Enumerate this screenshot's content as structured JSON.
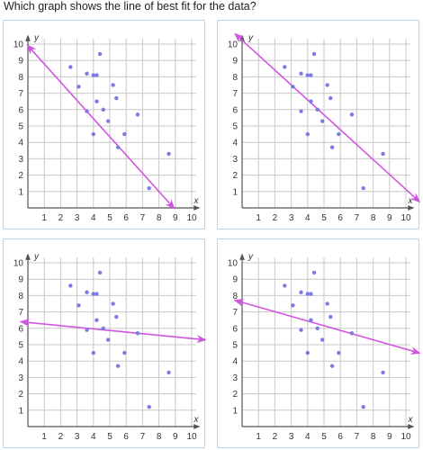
{
  "question": "Which graph shows the line of best fit for the data?",
  "colors": {
    "point": "#7b7be6",
    "line": "#d155e0",
    "grid": "#c8c8c8",
    "axis": "#555555",
    "border": "#a9d7ee"
  },
  "chart_data": [
    {
      "type": "scatter",
      "title": "",
      "xlabel": "x",
      "ylabel": "y",
      "xlim": [
        0,
        10
      ],
      "ylim": [
        0,
        10
      ],
      "grid": true,
      "x_ticks": [
        1,
        2,
        3,
        4,
        5,
        6,
        7,
        8,
        9,
        10
      ],
      "y_ticks": [
        1,
        2,
        3,
        4,
        5,
        6,
        7,
        8,
        9,
        10
      ],
      "points": [
        [
          2.6,
          8.6
        ],
        [
          3.1,
          7.4
        ],
        [
          3.6,
          8.2
        ],
        [
          3.6,
          5.9
        ],
        [
          4.0,
          8.1
        ],
        [
          4.0,
          4.5
        ],
        [
          4.2,
          8.1
        ],
        [
          4.2,
          6.5
        ],
        [
          4.4,
          9.4
        ],
        [
          4.6,
          6.0
        ],
        [
          4.9,
          5.3
        ],
        [
          5.2,
          7.5
        ],
        [
          5.4,
          6.7
        ],
        [
          5.5,
          3.7
        ],
        [
          5.9,
          4.5
        ],
        [
          6.7,
          5.7
        ],
        [
          7.4,
          1.2
        ],
        [
          8.6,
          3.3
        ]
      ],
      "line": {
        "from": [
          0,
          9.9
        ],
        "to": [
          8.9,
          0
        ]
      }
    },
    {
      "type": "scatter",
      "title": "",
      "xlabel": "x",
      "ylabel": "y",
      "xlim": [
        0,
        10
      ],
      "ylim": [
        0,
        10
      ],
      "grid": true,
      "x_ticks": [
        1,
        2,
        3,
        4,
        5,
        6,
        7,
        8,
        9,
        10
      ],
      "y_ticks": [
        1,
        2,
        3,
        4,
        5,
        6,
        7,
        8,
        9,
        10
      ],
      "points": [
        [
          2.6,
          8.6
        ],
        [
          3.1,
          7.4
        ],
        [
          3.6,
          8.2
        ],
        [
          3.6,
          5.9
        ],
        [
          4.0,
          8.1
        ],
        [
          4.0,
          4.5
        ],
        [
          4.2,
          8.1
        ],
        [
          4.2,
          6.5
        ],
        [
          4.4,
          9.4
        ],
        [
          4.6,
          6.0
        ],
        [
          4.9,
          5.3
        ],
        [
          5.2,
          7.5
        ],
        [
          5.4,
          6.7
        ],
        [
          5.5,
          3.7
        ],
        [
          5.9,
          4.5
        ],
        [
          6.7,
          5.7
        ],
        [
          7.4,
          1.2
        ],
        [
          8.6,
          3.3
        ]
      ],
      "line": {
        "from": [
          -0.4,
          10.6
        ],
        "to": [
          10.8,
          0.4
        ]
      }
    },
    {
      "type": "scatter",
      "title": "",
      "xlabel": "x",
      "ylabel": "y",
      "xlim": [
        0,
        10
      ],
      "ylim": [
        0,
        10
      ],
      "grid": true,
      "x_ticks": [
        1,
        2,
        3,
        4,
        5,
        6,
        7,
        8,
        9,
        10
      ],
      "y_ticks": [
        1,
        2,
        3,
        4,
        5,
        6,
        7,
        8,
        9,
        10
      ],
      "points": [
        [
          2.6,
          8.6
        ],
        [
          3.1,
          7.4
        ],
        [
          3.6,
          8.2
        ],
        [
          3.6,
          5.9
        ],
        [
          4.0,
          8.1
        ],
        [
          4.0,
          4.5
        ],
        [
          4.2,
          8.1
        ],
        [
          4.2,
          6.5
        ],
        [
          4.4,
          9.4
        ],
        [
          4.6,
          6.0
        ],
        [
          4.9,
          5.3
        ],
        [
          5.2,
          7.5
        ],
        [
          5.4,
          6.7
        ],
        [
          5.5,
          3.7
        ],
        [
          5.9,
          4.5
        ],
        [
          6.7,
          5.7
        ],
        [
          7.4,
          1.2
        ],
        [
          8.6,
          3.3
        ]
      ],
      "line": {
        "from": [
          -0.4,
          6.4
        ],
        "to": [
          10.8,
          5.3
        ]
      }
    },
    {
      "type": "scatter",
      "title": "",
      "xlabel": "x",
      "ylabel": "y",
      "xlim": [
        0,
        10
      ],
      "ylim": [
        0,
        10
      ],
      "grid": true,
      "x_ticks": [
        1,
        2,
        3,
        4,
        5,
        6,
        7,
        8,
        9,
        10
      ],
      "y_ticks": [
        1,
        2,
        3,
        4,
        5,
        6,
        7,
        8,
        9,
        10
      ],
      "points": [
        [
          2.6,
          8.6
        ],
        [
          3.1,
          7.4
        ],
        [
          3.6,
          8.2
        ],
        [
          3.6,
          5.9
        ],
        [
          4.0,
          8.1
        ],
        [
          4.0,
          4.5
        ],
        [
          4.2,
          8.1
        ],
        [
          4.2,
          6.5
        ],
        [
          4.4,
          9.4
        ],
        [
          4.6,
          6.0
        ],
        [
          4.9,
          5.3
        ],
        [
          5.2,
          7.5
        ],
        [
          5.4,
          6.7
        ],
        [
          5.5,
          3.7
        ],
        [
          5.9,
          4.5
        ],
        [
          6.7,
          5.7
        ],
        [
          7.4,
          1.2
        ],
        [
          8.6,
          3.3
        ]
      ],
      "line": {
        "from": [
          -0.4,
          7.7
        ],
        "to": [
          10.8,
          4.5
        ]
      }
    }
  ]
}
